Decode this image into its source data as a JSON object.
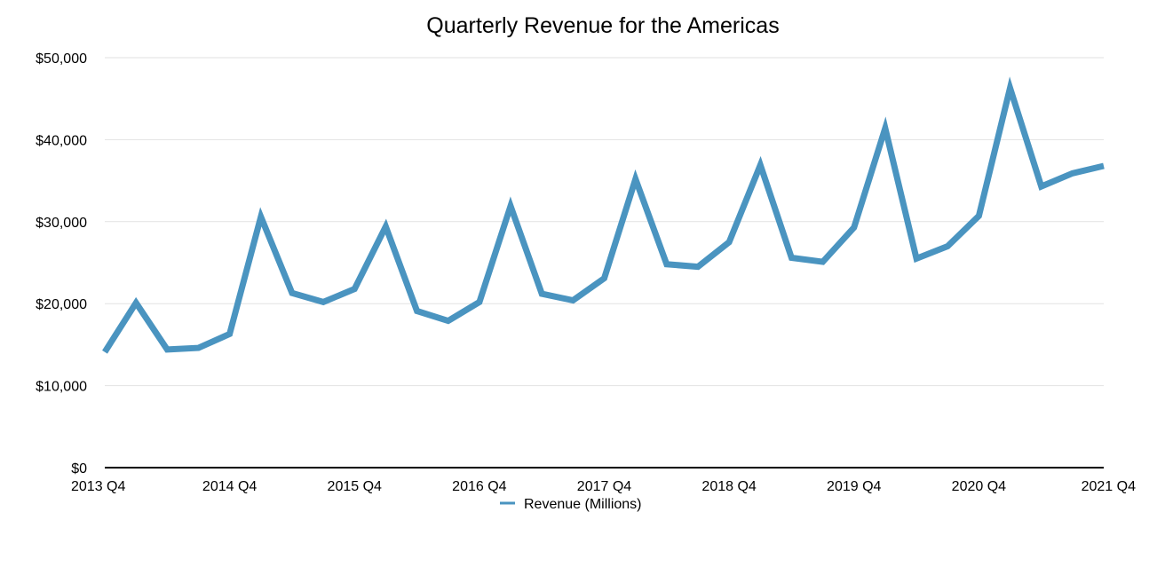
{
  "chart_data": {
    "type": "line",
    "title": "Quarterly Revenue for the Americas",
    "xlabel": "",
    "ylabel": "",
    "categories": [
      "2013 Q4",
      "2014 Q1",
      "2014 Q2",
      "2014 Q3",
      "2014 Q4",
      "2015 Q1",
      "2015 Q2",
      "2015 Q3",
      "2015 Q4",
      "2016 Q1",
      "2016 Q2",
      "2016 Q3",
      "2016 Q4",
      "2017 Q1",
      "2017 Q2",
      "2017 Q3",
      "2017 Q4",
      "2018 Q1",
      "2018 Q2",
      "2018 Q3",
      "2018 Q4",
      "2019 Q1",
      "2019 Q2",
      "2019 Q3",
      "2019 Q4",
      "2020 Q1",
      "2020 Q2",
      "2020 Q3",
      "2020 Q4",
      "2021 Q1",
      "2021 Q2",
      "2021 Q3",
      "2021 Q4"
    ],
    "x_tick_labels": [
      "2013 Q4",
      "2014 Q4",
      "2015 Q4",
      "2016 Q4",
      "2017 Q4",
      "2018 Q4",
      "2019 Q4",
      "2020 Q4",
      "2021 Q4"
    ],
    "y_tick_labels": [
      "$0",
      "$10,000",
      "$20,000",
      "$30,000",
      "$40,000",
      "$50,000"
    ],
    "ylim": [
      0,
      50000
    ],
    "yticks": [
      0,
      10000,
      20000,
      30000,
      40000,
      50000
    ],
    "grid": true,
    "legend_position": "bottom",
    "series": [
      {
        "name": "Revenue (Millions)",
        "color": "#4a94c0",
        "values": [
          14100,
          20100,
          14400,
          14600,
          16300,
          30600,
          21300,
          20200,
          21800,
          29400,
          19100,
          17900,
          20200,
          31900,
          21200,
          20400,
          23100,
          35200,
          24800,
          24500,
          27500,
          36900,
          25600,
          25100,
          29300,
          41400,
          25500,
          27000,
          30700,
          46300,
          34300,
          35900,
          36800
        ]
      }
    ]
  }
}
